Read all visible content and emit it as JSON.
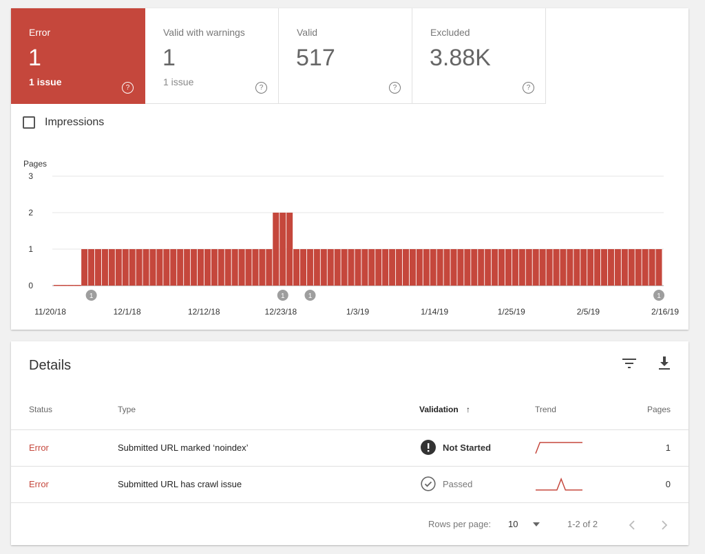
{
  "summary": {
    "tiles": [
      {
        "label": "Error",
        "value": "1",
        "sub": "1 issue",
        "active": true
      },
      {
        "label": "Valid with warnings",
        "value": "1",
        "sub": "1 issue",
        "active": false
      },
      {
        "label": "Valid",
        "value": "517",
        "sub": "",
        "active": false
      },
      {
        "label": "Excluded",
        "value": "3.88K",
        "sub": "",
        "active": false
      }
    ],
    "help_glyph": "?",
    "impressions_label": "Impressions"
  },
  "chart_data": {
    "type": "bar",
    "ylabel": "Pages",
    "ylim": [
      0,
      3
    ],
    "yticks": [
      0,
      1,
      2,
      3
    ],
    "start_date": "2018-11-20",
    "end_date": "2019-02-16",
    "bar_color": "#c5473c",
    "grid": true,
    "x_tick_labels": [
      "11/20/18",
      "12/1/18",
      "12/12/18",
      "12/23/18",
      "1/3/19",
      "1/14/19",
      "1/25/19",
      "2/5/19",
      "2/16/19"
    ],
    "segments": [
      {
        "from": "2018-11-20",
        "to": "2018-11-23",
        "value": 0
      },
      {
        "from": "2018-11-24",
        "to": "2018-12-21",
        "value": 1
      },
      {
        "from": "2018-12-22",
        "to": "2018-12-24",
        "value": 2
      },
      {
        "from": "2018-12-25",
        "to": "2019-02-16",
        "value": 1
      }
    ],
    "annotations": [
      {
        "date": "2018-11-25",
        "label": "1"
      },
      {
        "date": "2018-12-23",
        "label": "1"
      },
      {
        "date": "2018-12-27",
        "label": "1"
      },
      {
        "date": "2019-02-16",
        "label": "1"
      }
    ]
  },
  "details": {
    "title": "Details",
    "columns": {
      "status": "Status",
      "type": "Type",
      "validation": "Validation",
      "sort_arrow": "↑",
      "trend": "Trend",
      "pages": "Pages"
    },
    "rows": [
      {
        "status": "Error",
        "type": "Submitted URL marked ‘noindex’",
        "validation": "Not Started",
        "validation_icon": "alert-icon",
        "pages": "1",
        "trend": [
          0,
          1,
          1,
          1,
          1,
          1,
          1,
          1,
          1,
          1,
          1,
          1
        ]
      },
      {
        "status": "Error",
        "type": "Submitted URL has crawl issue",
        "validation": "Passed",
        "validation_icon": "check-circle-icon",
        "pages": "0",
        "trend": [
          0,
          0,
          0,
          0,
          0,
          0,
          1,
          0,
          0,
          0,
          0,
          0
        ]
      }
    ],
    "footer": {
      "rows_per_page_label": "Rows per page:",
      "rows_per_page": "10",
      "range": "1-2 of 2"
    }
  }
}
